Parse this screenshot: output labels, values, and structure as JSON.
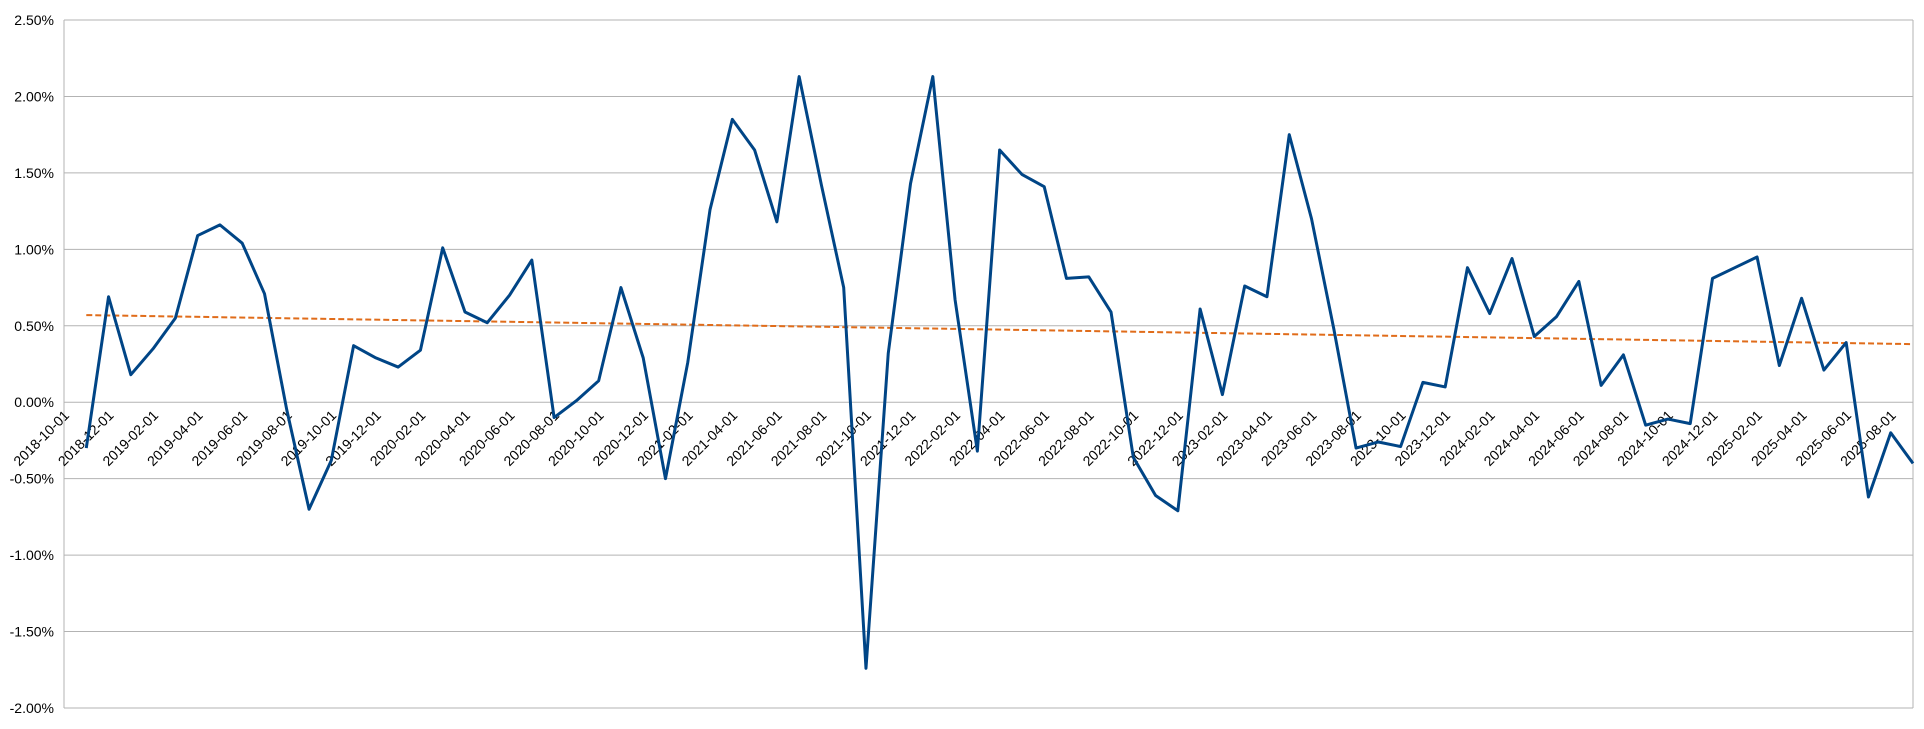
{
  "chart_data": {
    "type": "line",
    "categories": [
      "2018-10-01",
      null,
      "2018-12-01",
      null,
      "2019-02-01",
      null,
      "2019-04-01",
      null,
      "2019-06-01",
      null,
      "2019-08-01",
      null,
      "2019-10-01",
      null,
      "2019-12-01",
      null,
      "2020-02-01",
      null,
      "2020-04-01",
      null,
      "2020-06-01",
      null,
      "2020-08-01",
      null,
      "2020-10-01",
      null,
      "2020-12-01",
      null,
      "2021-02-01",
      null,
      "2021-04-01",
      null,
      "2021-06-01",
      null,
      "2021-08-01",
      null,
      "2021-10-01",
      null,
      "2021-12-01",
      null,
      "2022-02-01",
      null,
      "2022-04-01",
      null,
      "2022-06-01",
      null,
      "2022-08-01",
      null,
      "2022-10-01",
      null,
      "2022-12-01",
      null,
      "2023-02-01",
      null,
      "2023-04-01",
      null,
      "2023-06-01",
      null,
      "2023-08-01",
      null,
      "2023-10-01",
      null,
      "2023-12-01",
      null,
      "2024-02-01",
      null,
      "2024-04-01",
      null,
      "2024-06-01",
      null,
      "2024-08-01",
      null,
      "2024-10-01",
      null,
      "2024-12-01",
      null,
      "2025-02-01",
      null,
      "2025-04-01",
      null,
      "2025-06-01",
      null,
      "2025-08-01",
      null
    ],
    "series": [
      {
        "color": "#004586",
        "values": [
          null,
          -0.3,
          0.69,
          0.18,
          0.35,
          0.55,
          1.09,
          1.16,
          1.04,
          0.71,
          -0.05,
          -0.7,
          -0.38,
          0.37,
          0.29,
          0.23,
          0.34,
          1.01,
          0.59,
          0.52,
          0.7,
          0.93,
          -0.1,
          0.01,
          0.14,
          0.75,
          0.29,
          -0.5,
          0.26,
          1.26,
          1.85,
          1.65,
          1.18,
          2.13,
          1.42,
          0.75,
          -1.74,
          0.32,
          1.43,
          2.13,
          0.67,
          -0.32,
          1.65,
          1.49,
          1.41,
          0.81,
          0.82,
          0.59,
          -0.36,
          -0.61,
          -0.71,
          0.61,
          0.05,
          0.76,
          0.69,
          1.75,
          1.2,
          0.48,
          -0.3,
          -0.26,
          -0.29,
          0.13,
          0.1,
          0.88,
          0.58,
          0.94,
          0.43,
          0.56,
          0.79,
          0.11,
          0.31,
          -0.15,
          -0.11,
          -0.14,
          0.81,
          0.88,
          0.95,
          0.24,
          0.68,
          0.21,
          0.39,
          -0.62,
          -0.2,
          -0.4
        ]
      }
    ],
    "trendline": {
      "color": "#e06c1a",
      "values": [
        0.57,
        0.38
      ]
    },
    "ylim": [
      -2,
      2.5
    ],
    "yticks": [
      {
        "value": -2,
        "label": "-2.00%"
      },
      {
        "value": -1.5,
        "label": "-1.50%"
      },
      {
        "value": -1,
        "label": "-1.00%"
      },
      {
        "value": -0.5,
        "label": "-0.50%"
      },
      {
        "value": 0,
        "label": "0.00%"
      },
      {
        "value": 0.5,
        "label": "0.50%"
      },
      {
        "value": 1,
        "label": "1.00%"
      },
      {
        "value": 1.5,
        "label": "1.50%"
      },
      {
        "value": 2,
        "label": "2.00%"
      },
      {
        "value": 2.5,
        "label": "2.50%"
      }
    ],
    "grid": true
  }
}
